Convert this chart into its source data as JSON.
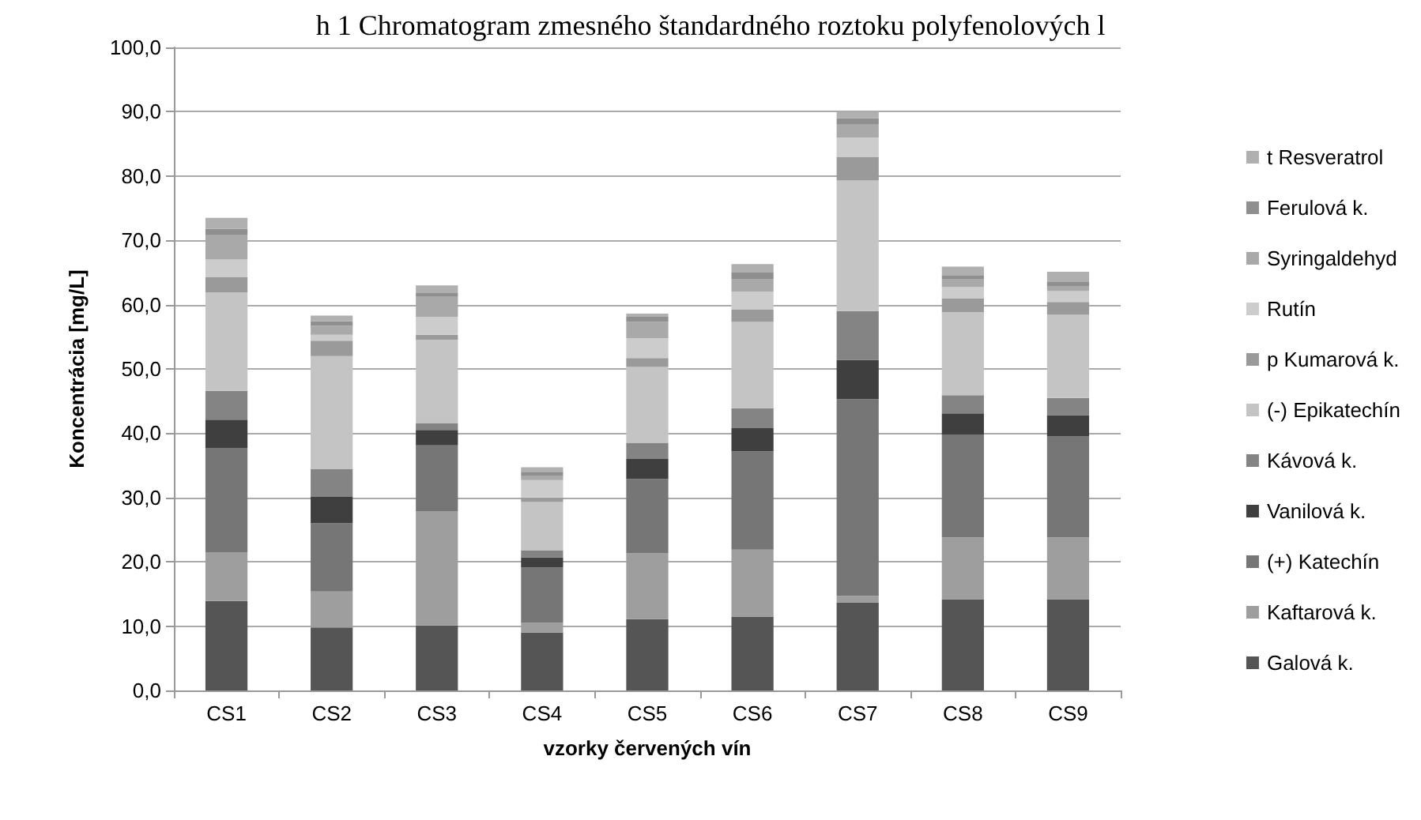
{
  "chart_data": {
    "type": "bar",
    "stacked": true,
    "annotations": [
      "h 1 Chromatogram zmesného štandardného roztoku polyfenolových l"
    ],
    "xlabel": "vzorky červených vín",
    "ylabel": "Koncentrácia [mg/L]",
    "categories": [
      "CS1",
      "CS2",
      "CS3",
      "CS4",
      "CS5",
      "CS6",
      "CS7",
      "CS8",
      "CS9"
    ],
    "series": [
      {
        "name": "Galová k.",
        "color": "#555555",
        "values": [
          13.9,
          9.8,
          10.1,
          9.0,
          11.1,
          11.5,
          13.7,
          14.2,
          14.2
        ]
      },
      {
        "name": "Kaftarová k.",
        "color": "#9e9e9e",
        "values": [
          7.6,
          5.6,
          17.8,
          1.5,
          10.2,
          10.4,
          1.0,
          9.6,
          9.6
        ]
      },
      {
        "name": "(+) Katechín",
        "color": "#767676",
        "values": [
          16.2,
          10.6,
          10.2,
          8.6,
          11.6,
          15.3,
          30.6,
          16.0,
          15.7
        ]
      },
      {
        "name": "Vanilová k.",
        "color": "#3f3f3f",
        "values": [
          4.4,
          4.1,
          2.4,
          1.6,
          3.1,
          3.6,
          6.1,
          3.3,
          3.3
        ]
      },
      {
        "name": "Kávová k.",
        "color": "#848484",
        "values": [
          4.5,
          4.3,
          1.1,
          1.1,
          2.5,
          3.1,
          7.6,
          2.8,
          2.7
        ]
      },
      {
        "name": "(-) Epikatechín",
        "color": "#c4c4c4",
        "values": [
          15.3,
          17.6,
          12.9,
          7.5,
          11.8,
          13.4,
          20.3,
          12.9,
          12.9
        ]
      },
      {
        "name": "p Kumarová k.",
        "color": "#9a9a9a",
        "values": [
          2.4,
          2.4,
          0.8,
          0.7,
          1.4,
          1.9,
          3.7,
          2.2,
          2.0
        ]
      },
      {
        "name": "Rutín",
        "color": "#cccccc",
        "values": [
          2.7,
          0.9,
          2.8,
          2.7,
          3.1,
          2.8,
          3.0,
          1.7,
          1.7
        ]
      },
      {
        "name": "Syringaldehyd",
        "color": "#a9a9a9",
        "values": [
          3.8,
          1.4,
          3.1,
          0.7,
          2.5,
          2.0,
          2.0,
          1.3,
          0.8
        ]
      },
      {
        "name": "Ferulová k.",
        "color": "#8f8f8f",
        "values": [
          1.0,
          0.7,
          0.6,
          0.6,
          0.8,
          1.0,
          1.0,
          0.5,
          0.6
        ]
      },
      {
        "name": "t Resveratrol",
        "color": "#b0b0b0",
        "values": [
          1.7,
          0.9,
          1.2,
          0.7,
          0.5,
          1.3,
          1.0,
          1.4,
          1.6
        ]
      }
    ],
    "ylim": [
      0,
      100
    ],
    "yticks": [
      {
        "value": 0,
        "label": "0,0"
      },
      {
        "value": 10,
        "label": "10,0"
      },
      {
        "value": 20,
        "label": "20,0"
      },
      {
        "value": 30,
        "label": "30,0"
      },
      {
        "value": 40,
        "label": "40,0"
      },
      {
        "value": 50,
        "label": "50,0"
      },
      {
        "value": 60,
        "label": "60,0"
      },
      {
        "value": 70,
        "label": "70,0"
      },
      {
        "value": 80,
        "label": "80,0"
      },
      {
        "value": 90,
        "label": "90,0"
      },
      {
        "value": 100,
        "label": "100,0"
      }
    ],
    "grid": "y",
    "legend": "right"
  }
}
